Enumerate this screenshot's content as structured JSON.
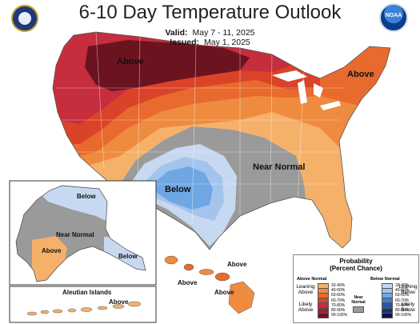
{
  "header": {
    "title": "6-10 Day Temperature Outlook",
    "valid_label": "Valid:",
    "valid_value": "May 7 - 11, 2025",
    "issued_label": "Issued:",
    "issued_value": "May 1, 2025"
  },
  "logos": {
    "noaa_text": "NOAA"
  },
  "regions": {
    "above_northwest": "Above",
    "above_northeast": "Above",
    "below_southwest": "Below",
    "near_normal_central": "Near Normal",
    "alaska_below_north": "Below",
    "alaska_near_normal": "Near Normal",
    "alaska_above": "Above",
    "alaska_below_southeast": "Below",
    "hawaii_above_1": "Above",
    "hawaii_above_2": "Above",
    "hawaii_above_3": "Above",
    "aleutian_title": "Aleutian Islands",
    "aleutian_above": "Above"
  },
  "legend": {
    "title_line1": "Probability",
    "title_line2": "(Percent Chance)",
    "above_normal": "Above Normal",
    "below_normal": "Below Normal",
    "near_normal": "Near Normal",
    "leaning_above": "Leaning Above",
    "likely_above": "Likely Above",
    "leaning_below": "Leaning Below",
    "likely_below": "Likely Below",
    "above_items": [
      {
        "range": "33-40%",
        "color": "#f5b16a"
      },
      {
        "range": "40-50%",
        "color": "#ee8b3f"
      },
      {
        "range": "50-60%",
        "color": "#e96a2e"
      },
      {
        "range": "60-70%",
        "color": "#db4328"
      },
      {
        "range": "70-80%",
        "color": "#c62d3d"
      },
      {
        "range": "80-90%",
        "color": "#9e1f35"
      },
      {
        "range": "90-100%",
        "color": "#6b1420"
      }
    ],
    "below_items": [
      {
        "range": "33-40%",
        "color": "#c7d9f1"
      },
      {
        "range": "40-50%",
        "color": "#a3c4ec"
      },
      {
        "range": "50-60%",
        "color": "#6fa7e4"
      },
      {
        "range": "60-70%",
        "color": "#3f7fd0"
      },
      {
        "range": "70-80%",
        "color": "#2456a8"
      },
      {
        "range": "80-90%",
        "color": "#1a2f7d"
      },
      {
        "range": "90-100%",
        "color": "#140f4d"
      }
    ]
  },
  "colors": {
    "near_normal": "#9a9a9a",
    "land_border": "#ffffff",
    "state_line": "#e0e0e0"
  }
}
